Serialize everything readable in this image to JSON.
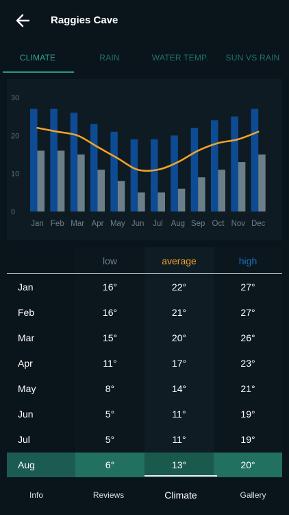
{
  "header": {
    "title": "Raggies Cave",
    "back_icon": "arrow-left-icon"
  },
  "tabs": [
    {
      "label": "CLIMATE",
      "active": true
    },
    {
      "label": "RAIN",
      "active": false
    },
    {
      "label": "WATER TEMP.",
      "active": false
    },
    {
      "label": "SUN VS RAIN",
      "active": false
    }
  ],
  "chart_data": {
    "type": "bar",
    "categories": [
      "Jan",
      "Feb",
      "Mar",
      "Apr",
      "May",
      "Jun",
      "Jul",
      "Aug",
      "Sep",
      "Oct",
      "Nov",
      "Dec"
    ],
    "series": [
      {
        "values": [
          27,
          27,
          26,
          23,
          21,
          19,
          19,
          20,
          22,
          24,
          25,
          27
        ],
        "color": "#0d4c94"
      },
      {
        "values": [
          16,
          16,
          15,
          11,
          8,
          5,
          5,
          6,
          9,
          11,
          13,
          15
        ],
        "color": "#6b7f8b"
      },
      {
        "values": [
          22,
          21,
          20,
          17,
          14,
          11,
          11,
          13,
          16,
          18,
          19,
          21
        ],
        "color": "#f0a22b",
        "style": "line"
      }
    ],
    "ylim": [
      0,
      30
    ],
    "yticks": [
      0,
      10,
      20,
      30
    ],
    "grid": false
  },
  "table": {
    "headers": {
      "low": "low",
      "average": "average",
      "high": "high"
    },
    "colors": {
      "low": "#6f7f8a",
      "average": "#f0a22b",
      "high": "#1d74c2"
    },
    "rows": [
      {
        "month": "Jan",
        "low": "16°",
        "average": "22°",
        "high": "27°"
      },
      {
        "month": "Feb",
        "low": "16°",
        "average": "21°",
        "high": "27°"
      },
      {
        "month": "Mar",
        "low": "15°",
        "average": "20°",
        "high": "26°"
      },
      {
        "month": "Apr",
        "low": "11°",
        "average": "17°",
        "high": "23°"
      },
      {
        "month": "May",
        "low": "8°",
        "average": "14°",
        "high": "21°"
      },
      {
        "month": "Jun",
        "low": "5°",
        "average": "11°",
        "high": "19°"
      },
      {
        "month": "Jul",
        "low": "5°",
        "average": "11°",
        "high": "19°"
      },
      {
        "month": "Aug",
        "low": "6°",
        "average": "13°",
        "high": "20°"
      }
    ],
    "highlighted_month": "Aug"
  },
  "bottom_nav": [
    {
      "label": "Info",
      "active": false
    },
    {
      "label": "Reviews",
      "active": false
    },
    {
      "label": "Climate",
      "active": true
    },
    {
      "label": "Gallery",
      "active": false
    }
  ]
}
